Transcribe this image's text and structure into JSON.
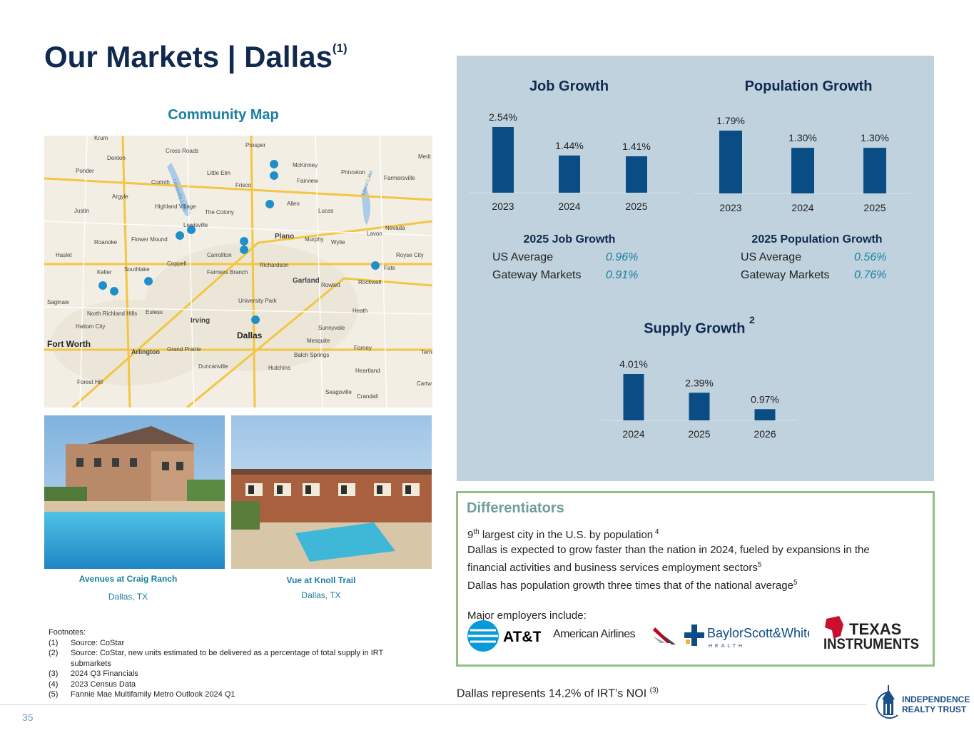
{
  "title": {
    "main": "Our Markets | Dallas",
    "superscript": "(1)"
  },
  "map": {
    "heading": "Community Map",
    "labels": [
      "Krum",
      "Denton",
      "Cross Roads",
      "Prosper",
      "Merit",
      "McKinney",
      "Ponder",
      "Little Elm",
      "Frisco",
      "Princeton",
      "Farmersville",
      "Fairview",
      "Argyle",
      "Corinth",
      "Justin",
      "Highland Village",
      "The Colony",
      "Allen",
      "Lucas",
      "Lewisville",
      "Plano",
      "Nevada",
      "Lavon",
      "Murphy",
      "Wylie",
      "Flower Mound",
      "Roanoke",
      "Carrollton",
      "Royse City",
      "Haslet",
      "Coppell",
      "Richardson",
      "Fate",
      "Keller",
      "Southlake",
      "Farmers Branch",
      "Garland",
      "Rowlett",
      "Rockwall",
      "Saginaw",
      "North Richland Hills",
      "Euless",
      "University Park",
      "Heath",
      "Haltom City",
      "Irving",
      "Dallas",
      "Sunnyvale",
      "Fort Worth",
      "Arlington",
      "Grand Prairie",
      "Mesquite",
      "Forney",
      "Balch Springs",
      "Terre",
      "Heartland",
      "Forest Hill",
      "Duncanville",
      "Hutchins",
      "Seagoville",
      "Crandall",
      "Cartw",
      "Lewisville Lake",
      "Lavon Lake"
    ]
  },
  "properties": [
    {
      "name": "Avenues at Craig Ranch",
      "location": "Dallas, TX"
    },
    {
      "name": "Vue at Knoll Trail",
      "location": "Dallas, TX"
    }
  ],
  "job_growth": {
    "title": "Job Growth"
  },
  "population_growth": {
    "title": "Population Growth"
  },
  "supply_growth": {
    "title": "Supply Growth",
    "superscript": "2"
  },
  "chart_data": [
    {
      "type": "bar",
      "title": "Job Growth",
      "categories": [
        "2023",
        "2024",
        "2025"
      ],
      "values": [
        2.54,
        1.44,
        1.41
      ],
      "value_labels": [
        "2.54%",
        "1.44%",
        "1.41%"
      ],
      "color": "#0a4d85"
    },
    {
      "type": "bar",
      "title": "Population Growth",
      "categories": [
        "2023",
        "2024",
        "2025"
      ],
      "values": [
        1.79,
        1.3,
        1.3
      ],
      "value_labels": [
        "1.79%",
        "1.30%",
        "1.30%"
      ],
      "color": "#0a4d85"
    },
    {
      "type": "bar",
      "title": "Supply Growth",
      "categories": [
        "2024",
        "2025",
        "2026"
      ],
      "values": [
        4.01,
        2.39,
        0.97
      ],
      "value_labels": [
        "4.01%",
        "2.39%",
        "0.97%"
      ],
      "color": "#0a4d85"
    }
  ],
  "job_stats": {
    "heading": "2025 Job Growth",
    "rows": [
      {
        "label": "US Average",
        "value": "0.96%"
      },
      {
        "label": "Gateway Markets",
        "value": "0.91%"
      }
    ]
  },
  "pop_stats": {
    "heading": "2025 Population Growth",
    "rows": [
      {
        "label": "US Average",
        "value": "0.56%"
      },
      {
        "label": "Gateway Markets",
        "value": "0.76%"
      }
    ]
  },
  "differentiators": {
    "title": "Differentiators",
    "line1_pre": "9",
    "line1_sup": "th",
    "line1_text": " largest city in the U.S. by population",
    "line1_ref": " 4",
    "line2": "Dallas is expected to grow faster than the nation in 2024, fueled by expansions in the financial activities and business services employment sectors",
    "line2_ref": "5",
    "line3": "Dallas has population growth three times that of the national average",
    "line3_ref": "5",
    "employers_label": "Major employers include:",
    "logos": {
      "att": "AT&T",
      "american": "American Airlines",
      "baylor": "BaylorScott&White",
      "baylor_sub": "HEALTH",
      "ti_1": "TEXAS",
      "ti_2": "INSTRUMENTS"
    }
  },
  "noi": {
    "text": "Dallas represents 14.2% of IRT’s NOI",
    "ref": "(3)"
  },
  "footnotes": {
    "heading": "Footnotes:",
    "items": [
      {
        "num": "(1)",
        "text": "Source: CoStar"
      },
      {
        "num": "(2)",
        "text": "Source: CoStar, new units estimated to be delivered as a percentage of total supply in IRT submarkets"
      },
      {
        "num": "(3)",
        "text": "2024 Q3 Financials"
      },
      {
        "num": "(4)",
        "text": "2023 Census Data"
      },
      {
        "num": "(5)",
        "text": "Fannie Mae Multifamily Metro Outlook 2024 Q1"
      }
    ]
  },
  "page_number": "35",
  "logo": {
    "line1": "INDEPENDENCE",
    "line2": "REALTY TRUST"
  }
}
